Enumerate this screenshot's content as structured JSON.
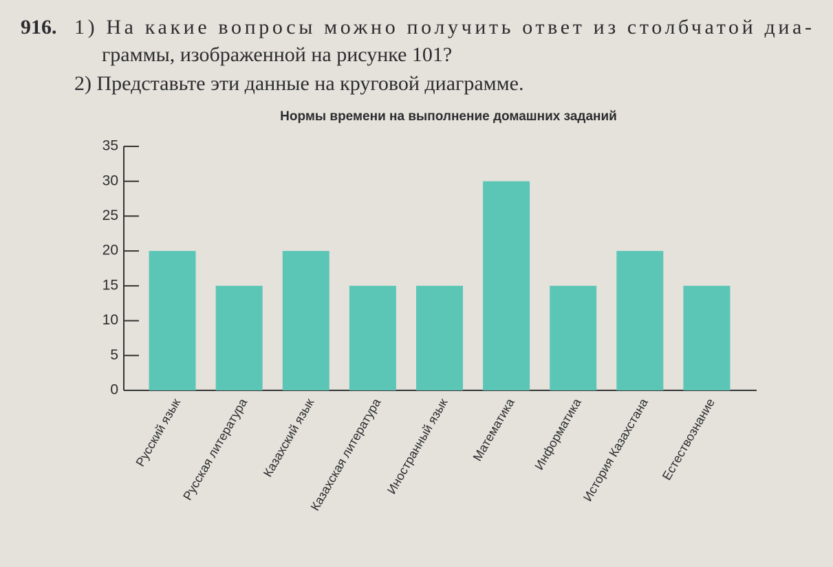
{
  "problem": {
    "number": "916.",
    "lines": [
      "1) На какие вопросы можно получить ответ из столбчатой диа-",
      "граммы, изображенной на рисунке 101?",
      "2) Представьте эти данные на круговой диаграмме."
    ]
  },
  "chart_data": {
    "type": "bar",
    "title": "Нормы времени на выполнение домашних заданий",
    "categories": [
      "Русский язык",
      "Русская литература",
      "Казахский язык",
      "Казахская литература",
      "Иностранный язык",
      "Математика",
      "Информатика",
      "История Казахстана",
      "Естествознание"
    ],
    "values": [
      20,
      15,
      20,
      15,
      15,
      30,
      15,
      20,
      15
    ],
    "color": "#5cc6b6",
    "ylim": [
      0,
      35
    ],
    "yticks": [
      0,
      5,
      10,
      15,
      20,
      25,
      30,
      35
    ],
    "grid": false
  }
}
